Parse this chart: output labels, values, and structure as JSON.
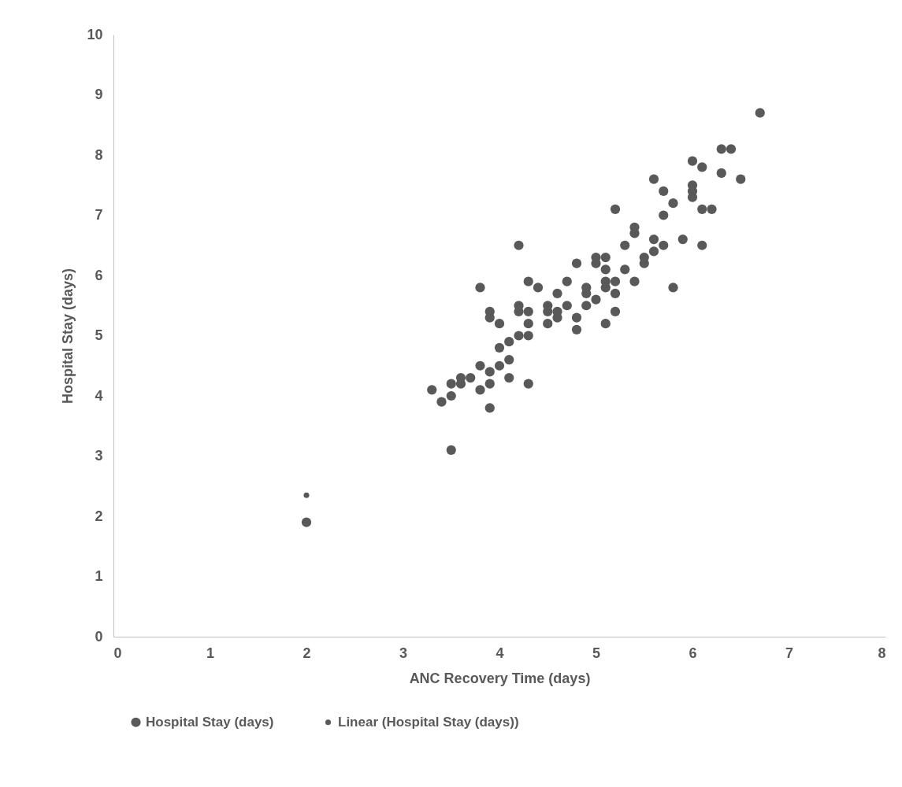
{
  "chart_data": {
    "type": "scatter",
    "xlabel": "ANC Recovery Time (days)",
    "ylabel": "Hospital Stay (days)",
    "xlim": [
      0,
      8
    ],
    "xticks": [
      0,
      1,
      2,
      3,
      4,
      5,
      6,
      7,
      8
    ],
    "ylim": [
      0,
      10
    ],
    "yticks": [
      0,
      1,
      2,
      3,
      4,
      5,
      6,
      7,
      8,
      9,
      10
    ],
    "grid": false,
    "legend": "bottom",
    "marker": "circle",
    "series": [
      {
        "name": "Hospital Stay (days)",
        "color": "#595959",
        "x": [
          2,
          3.5,
          3.3,
          3.4,
          3.5,
          3.5,
          3.6,
          3.6,
          3.7,
          3.8,
          3.8,
          3.8,
          3.9,
          3.9,
          3.9,
          3.9,
          3.9,
          4.0,
          4.0,
          4.0,
          4.1,
          4.1,
          4.1,
          4.2,
          4.2,
          4.2,
          4.2,
          4.3,
          4.3,
          4.3,
          4.3,
          4.3,
          4.4,
          4.5,
          4.5,
          4.5,
          4.6,
          4.6,
          4.6,
          4.7,
          4.7,
          4.8,
          4.8,
          4.8,
          4.9,
          4.9,
          4.9,
          5.0,
          5.0,
          5.0,
          5.1,
          5.1,
          5.1,
          5.1,
          5.1,
          5.2,
          5.2,
          5.2,
          5.2,
          5.3,
          5.3,
          5.4,
          5.4,
          5.4,
          5.5,
          5.5,
          5.6,
          5.6,
          5.6,
          5.7,
          5.7,
          5.7,
          5.8,
          5.8,
          5.9,
          6.0,
          6.0,
          6.0,
          6.0,
          6.1,
          6.1,
          6.1,
          6.2,
          6.3,
          6.3,
          6.4,
          6.5,
          6.7
        ],
        "values": [
          1.9,
          3.1,
          4.1,
          3.9,
          4.0,
          4.2,
          4.2,
          4.3,
          4.3,
          4.5,
          4.1,
          5.8,
          3.8,
          4.2,
          4.4,
          5.3,
          5.4,
          4.5,
          4.8,
          5.2,
          4.3,
          4.6,
          4.9,
          5.0,
          5.4,
          5.5,
          6.5,
          4.2,
          5.0,
          5.2,
          5.4,
          5.9,
          5.8,
          5.2,
          5.4,
          5.5,
          5.3,
          5.4,
          5.7,
          5.5,
          5.9,
          5.1,
          5.3,
          6.2,
          5.5,
          5.7,
          5.8,
          5.6,
          6.2,
          6.3,
          5.2,
          5.8,
          5.9,
          6.1,
          6.3,
          5.4,
          5.7,
          5.9,
          7.1,
          6.1,
          6.5,
          5.9,
          6.7,
          6.8,
          6.2,
          6.3,
          6.4,
          6.6,
          7.6,
          6.5,
          7.0,
          7.4,
          5.8,
          7.2,
          6.6,
          7.3,
          7.4,
          7.5,
          7.9,
          6.5,
          7.1,
          7.8,
          7.1,
          7.7,
          8.1,
          8.1,
          7.6,
          8.7
        ]
      },
      {
        "name": "Linear (Hospital Stay (days))",
        "color": "#595959",
        "type": "scatter",
        "x": [
          2
        ],
        "values": [
          2.35
        ]
      }
    ]
  }
}
